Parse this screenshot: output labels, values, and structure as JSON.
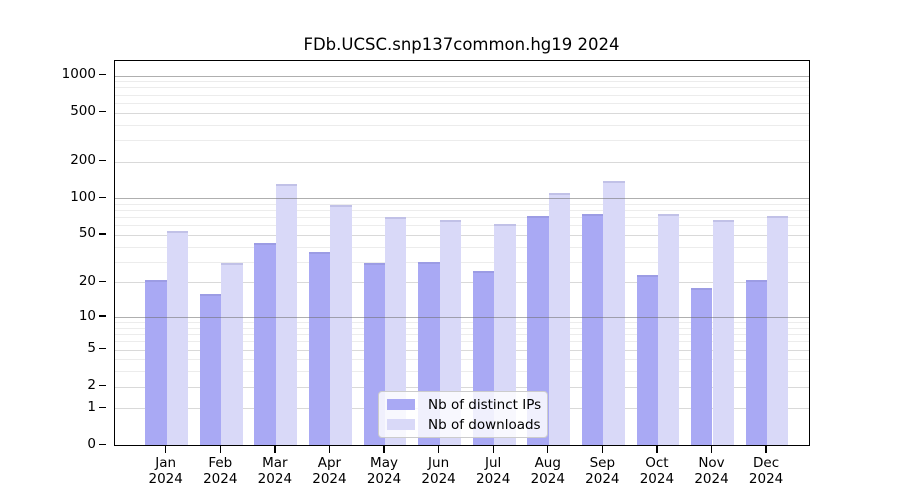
{
  "title": "FDb.UCSC.snp137common.hg19 2024",
  "chart_data": {
    "type": "bar",
    "scale": "log1p",
    "title": "FDb.UCSC.snp137common.hg19 2024",
    "categories": [
      "Jan 2024",
      "Feb 2024",
      "Mar 2024",
      "Apr 2024",
      "May 2024",
      "Jun 2024",
      "Jul 2024",
      "Aug 2024",
      "Sep 2024",
      "Oct 2024",
      "Nov 2024",
      "Dec 2024"
    ],
    "series": [
      {
        "name": "Nb of distinct IPs",
        "color": "#a9a9f4",
        "values": [
          21,
          16,
          43,
          36,
          29,
          30,
          25,
          71,
          75,
          23,
          18,
          21
        ]
      },
      {
        "name": "Nb of downloads",
        "color": "#d9d9f8",
        "values": [
          54,
          29,
          130,
          88,
          70,
          67,
          61,
          110,
          140,
          74,
          67,
          72
        ]
      }
    ],
    "y_ticks": [
      0,
      1,
      2,
      5,
      10,
      20,
      50,
      100,
      200,
      500,
      1000
    ],
    "y_major_gridlines": [
      10,
      100,
      1000
    ],
    "ylim": [
      0,
      1300
    ],
    "xlabel": "",
    "ylabel": "",
    "grid": "horizontal",
    "legend_position": "bottom-center"
  },
  "colors": {
    "bar_distinct_ips": "#a9a9f4",
    "bar_downloads": "#d9d9f8",
    "grid_major": "#6e6e6e",
    "grid_minor": "#ececec",
    "axis": "#000000",
    "background": "#ffffff"
  }
}
